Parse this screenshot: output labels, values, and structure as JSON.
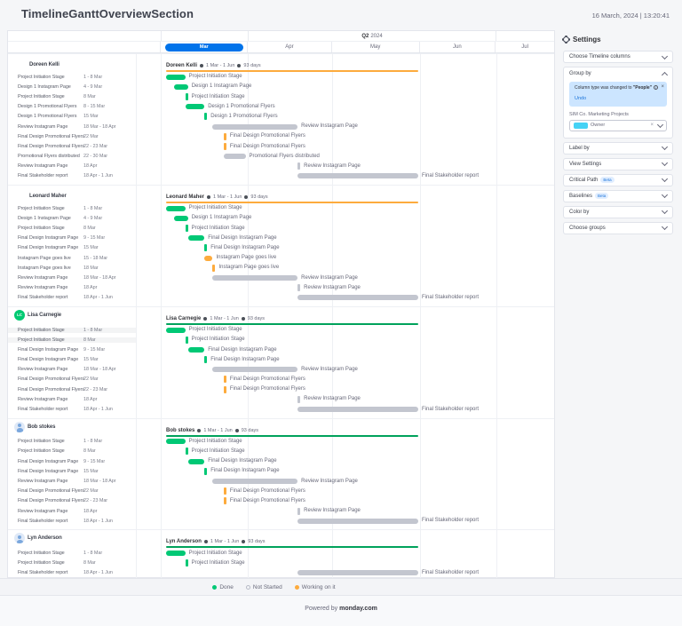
{
  "header": {
    "title": "TimelineGanttOverviewSection",
    "timestamp": "16 March, 2024 | 13:20:41"
  },
  "timeline": {
    "quarter": "Q2",
    "year": "2024",
    "months": [
      "Mar",
      "Apr",
      "May",
      "Jun",
      "Jul"
    ],
    "highlighted_month": "Mar"
  },
  "statuses": {
    "done": "#00c875",
    "not_started": "#c3c6cf",
    "working": "#fdab3d"
  },
  "groups": [
    {
      "name": "Doreen Kelli",
      "avatar": null,
      "range": "1 Mar - 1 Jun",
      "duration": "93 days",
      "line_color": "#fdab3d",
      "tasks": [
        {
          "name": "Project Initiation Stage",
          "dates": "1 - 8 Mar",
          "status": "done",
          "start": 0,
          "end": 7
        },
        {
          "name": "Design 1 Instagram Page",
          "dates": "4 - 9 Mar",
          "status": "done",
          "start": 3,
          "end": 8
        },
        {
          "name": "Project Initiation Stage",
          "dates": "8 Mar",
          "status": "done",
          "start": 7,
          "end": 7
        },
        {
          "name": "Design 1 Promotional Flyers",
          "dates": "8 - 15 Mar",
          "status": "done",
          "start": 7,
          "end": 14
        },
        {
          "name": "Design 1 Promotional Flyers",
          "dates": "15 Mar",
          "status": "done",
          "start": 14,
          "end": 14
        },
        {
          "name": "Review Instagram Page",
          "dates": "18 Mar - 18 Apr",
          "status": "not_started",
          "start": 17,
          "end": 48
        },
        {
          "name": "Final Design Promotional Flyers",
          "dates": "22 Mar",
          "status": "working",
          "start": 21,
          "end": 21
        },
        {
          "name": "Final Design Promotional Flyers",
          "dates": "22 - 23 Mar",
          "status": "working",
          "start": 21,
          "end": 22
        },
        {
          "name": "Promotional Flyers distributed",
          "dates": "22 - 30 Mar",
          "status": "not_started",
          "start": 21,
          "end": 29
        },
        {
          "name": "Review Instagram Page",
          "dates": "18 Apr",
          "status": "not_started",
          "start": 48,
          "end": 48
        },
        {
          "name": "Final Stakeholder report",
          "dates": "18 Apr - 1 Jun",
          "status": "not_started",
          "start": 48,
          "end": 92
        }
      ]
    },
    {
      "name": "Leonard Maher",
      "avatar": null,
      "range": "1 Mar - 1 Jun",
      "duration": "93 days",
      "line_color": "#fdab3d",
      "tasks": [
        {
          "name": "Project Initiation Stage",
          "dates": "1 - 8 Mar",
          "status": "done",
          "start": 0,
          "end": 7
        },
        {
          "name": "Design 1 Instagram Page",
          "dates": "4 - 9 Mar",
          "status": "done",
          "start": 3,
          "end": 8
        },
        {
          "name": "Project Initiation Stage",
          "dates": "8 Mar",
          "status": "done",
          "start": 7,
          "end": 7
        },
        {
          "name": "Final Design Instagram Page",
          "dates": "9 - 15 Mar",
          "status": "done",
          "start": 8,
          "end": 14
        },
        {
          "name": "Final Design Instagram Page",
          "dates": "15 Mar",
          "status": "done",
          "start": 14,
          "end": 14
        },
        {
          "name": "Instagram Page goes live",
          "dates": "15 - 18 Mar",
          "status": "working",
          "start": 14,
          "end": 17
        },
        {
          "name": "Instagram Page goes live",
          "dates": "18 Mar",
          "status": "working",
          "start": 17,
          "end": 17
        },
        {
          "name": "Review Instagram Page",
          "dates": "18 Mar - 18 Apr",
          "status": "not_started",
          "start": 17,
          "end": 48
        },
        {
          "name": "Review Instagram Page",
          "dates": "18 Apr",
          "status": "not_started",
          "start": 48,
          "end": 48
        },
        {
          "name": "Final Stakeholder report",
          "dates": "18 Apr - 1 Jun",
          "status": "not_started",
          "start": 48,
          "end": 92
        }
      ]
    },
    {
      "name": "Lisa Carnegie",
      "avatar": {
        "type": "initials",
        "initials": "LC",
        "color": "#00ca72"
      },
      "range": "1 Mar - 1 Jun",
      "duration": "93 days",
      "line_color": "#00a25b",
      "tasks": [
        {
          "name": "Project Initiation Stage",
          "dates": "1 - 8 Mar",
          "status": "done",
          "start": 0,
          "end": 7,
          "highlight": true
        },
        {
          "name": "Project Initiation Stage",
          "dates": "8 Mar",
          "status": "done",
          "start": 7,
          "end": 7,
          "highlight": true
        },
        {
          "name": "Final Design Instagram Page",
          "dates": "9 - 15 Mar",
          "status": "done",
          "start": 8,
          "end": 14
        },
        {
          "name": "Final Design Instagram Page",
          "dates": "15 Mar",
          "status": "done",
          "start": 14,
          "end": 14
        },
        {
          "name": "Review Instagram Page",
          "dates": "18 Mar - 18 Apr",
          "status": "not_started",
          "start": 17,
          "end": 48
        },
        {
          "name": "Final Design Promotional Flyers",
          "dates": "22 Mar",
          "status": "working",
          "start": 21,
          "end": 21
        },
        {
          "name": "Final Design Promotional Flyers",
          "dates": "22 - 23 Mar",
          "status": "working",
          "start": 21,
          "end": 22
        },
        {
          "name": "Review Instagram Page",
          "dates": "18 Apr",
          "status": "not_started",
          "start": 48,
          "end": 48
        },
        {
          "name": "Final Stakeholder report",
          "dates": "18 Apr - 1 Jun",
          "status": "not_started",
          "start": 48,
          "end": 92
        }
      ]
    },
    {
      "name": "Bob stokes",
      "avatar": {
        "type": "icon"
      },
      "range": "1 Mar - 1 Jun",
      "duration": "93 days",
      "line_color": "#00a25b",
      "tasks": [
        {
          "name": "Project Initiation Stage",
          "dates": "1 - 8 Mar",
          "status": "done",
          "start": 0,
          "end": 7
        },
        {
          "name": "Project Initiation Stage",
          "dates": "8 Mar",
          "status": "done",
          "start": 7,
          "end": 7
        },
        {
          "name": "Final Design Instagram Page",
          "dates": "9 - 15 Mar",
          "status": "done",
          "start": 8,
          "end": 14
        },
        {
          "name": "Final Design Instagram Page",
          "dates": "15 Mar",
          "status": "done",
          "start": 14,
          "end": 14
        },
        {
          "name": "Review Instagram Page",
          "dates": "18 Mar - 18 Apr",
          "status": "not_started",
          "start": 17,
          "end": 48
        },
        {
          "name": "Final Design Promotional Flyers",
          "dates": "22 Mar",
          "status": "working",
          "start": 21,
          "end": 21
        },
        {
          "name": "Final Design Promotional Flyers",
          "dates": "22 - 23 Mar",
          "status": "working",
          "start": 21,
          "end": 22
        },
        {
          "name": "Review Instagram Page",
          "dates": "18 Apr",
          "status": "not_started",
          "start": 48,
          "end": 48
        },
        {
          "name": "Final Stakeholder report",
          "dates": "18 Apr - 1 Jun",
          "status": "not_started",
          "start": 48,
          "end": 92
        }
      ]
    },
    {
      "name": "Lyn Anderson",
      "avatar": {
        "type": "icon"
      },
      "range": "1 Mar - 1 Jun",
      "duration": "93 days",
      "line_color": "#00a25b",
      "tasks": [
        {
          "name": "Project Initiation Stage",
          "dates": "1 - 8 Mar",
          "status": "done",
          "start": 0,
          "end": 7
        },
        {
          "name": "Project Initiation Stage",
          "dates": "8 Mar",
          "status": "done",
          "start": 7,
          "end": 7
        },
        {
          "name": "Final Stakeholder report",
          "dates": "18 Apr - 1 Jun",
          "status": "not_started",
          "start": 48,
          "end": 92
        }
      ]
    }
  ],
  "legend": [
    {
      "key": "done",
      "label": "Done"
    },
    {
      "key": "not_started",
      "label": "Not Started"
    },
    {
      "key": "working",
      "label": "Working on it"
    }
  ],
  "settings": {
    "title": "Settings",
    "sections": [
      {
        "label": "Choose Timeline columns",
        "state": "collapsed"
      },
      {
        "label": "Group by",
        "state": "expanded"
      },
      {
        "label": "Label by",
        "state": "collapsed"
      },
      {
        "label": "View Settings",
        "state": "collapsed"
      },
      {
        "label": "Critical Path",
        "beta": "Beta",
        "state": "collapsed"
      },
      {
        "label": "Baselines",
        "beta": "Beta",
        "state": "collapsed"
      },
      {
        "label": "Color by",
        "state": "collapsed"
      },
      {
        "label": "Choose groups",
        "state": "collapsed"
      }
    ],
    "group_by": {
      "notice_text": "Column type was changed to ",
      "notice_bold": "\"People\"",
      "undo_label": "Undo",
      "close_glyph": "×",
      "board_label": "SIM Co. Marketing Projects",
      "selected_value": "Owner",
      "chip_color": "#45d2f5"
    }
  },
  "footer": {
    "powered_by": "Powered by",
    "brand": "monday.com"
  }
}
